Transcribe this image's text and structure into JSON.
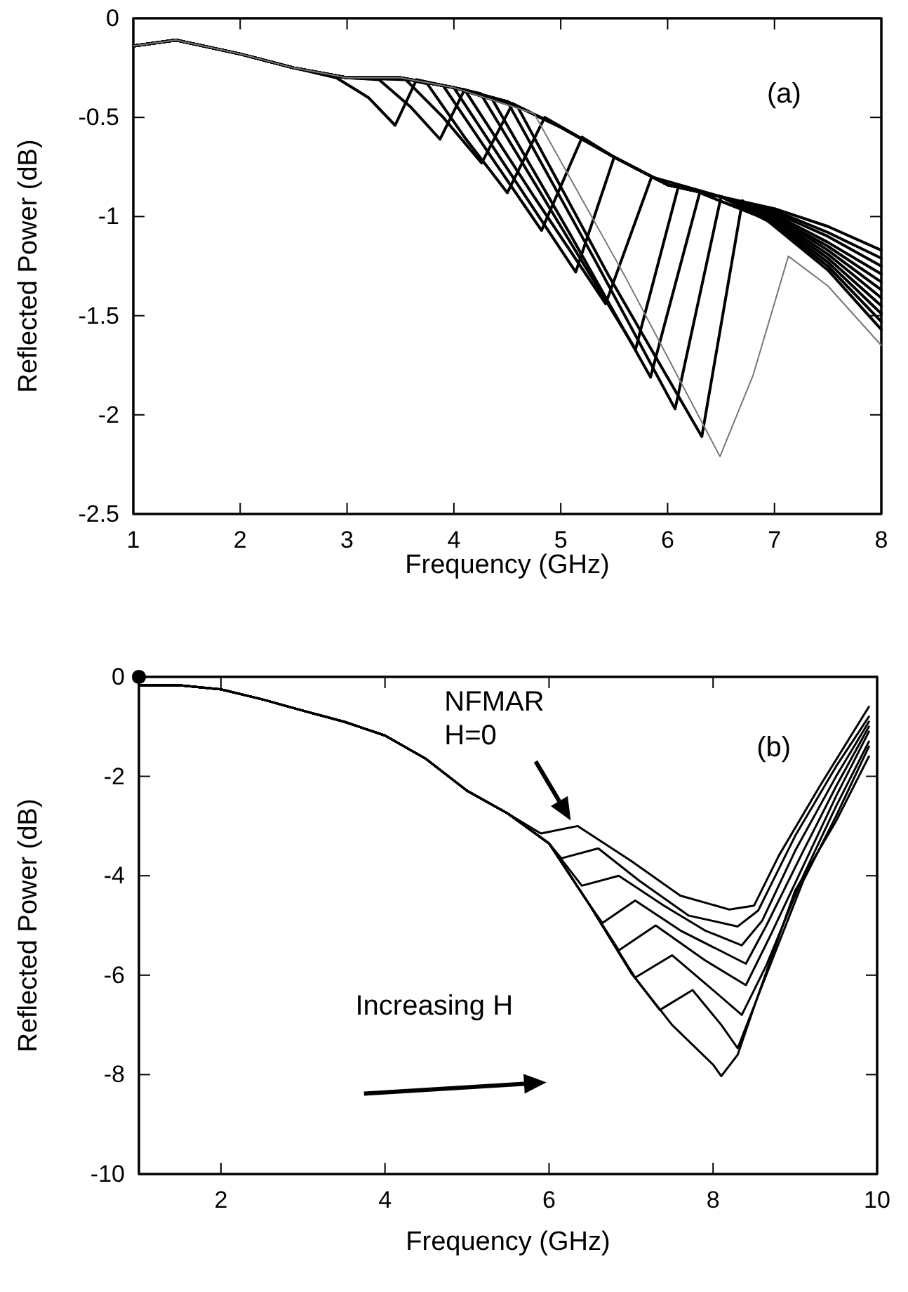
{
  "chart_data": [
    {
      "type": "line",
      "xlabel": "Frequency (GHz)",
      "ylabel": "Reflected Power (dB)",
      "xlim": [
        1,
        8
      ],
      "ylim": [
        -2.5,
        0
      ],
      "xticks": [
        1,
        2,
        3,
        4,
        5,
        6,
        7,
        8
      ],
      "yticks": [
        -2.5,
        -2,
        -1.5,
        -1,
        -0.5,
        0
      ],
      "annotations": [
        "(a)"
      ],
      "series": [
        {
          "color": "#000000",
          "x": [
            1,
            1.4,
            2,
            2.5,
            2.9,
            3.2,
            3.45,
            3.65,
            4,
            4.5,
            5,
            5.5,
            6,
            6.5,
            7,
            7.5,
            8
          ],
          "values": [
            -0.14,
            -0.11,
            -0.18,
            -0.25,
            -0.3,
            -0.4,
            -0.54,
            -0.31,
            -0.35,
            -0.42,
            -0.55,
            -0.7,
            -0.84,
            -0.9,
            -0.96,
            -1.05,
            -1.17
          ]
        },
        {
          "color": "#000000",
          "x": [
            1,
            1.4,
            2,
            2.5,
            3,
            3.3,
            3.6,
            3.87,
            4.1,
            4.5,
            5,
            5.5,
            6,
            6.5,
            7,
            7.5,
            8
          ],
          "values": [
            -0.14,
            -0.11,
            -0.18,
            -0.25,
            -0.3,
            -0.31,
            -0.45,
            -0.61,
            -0.36,
            -0.42,
            -0.55,
            -0.7,
            -0.84,
            -0.9,
            -0.97,
            -1.08,
            -1.21
          ]
        },
        {
          "color": "#000000",
          "x": [
            1,
            1.4,
            2,
            2.5,
            3,
            3.55,
            3.9,
            4.26,
            4.55,
            5,
            5.5,
            6,
            6.5,
            7,
            7.5,
            8
          ],
          "values": [
            -0.14,
            -0.11,
            -0.18,
            -0.25,
            -0.3,
            -0.31,
            -0.5,
            -0.73,
            -0.43,
            -0.55,
            -0.7,
            -0.84,
            -0.9,
            -0.98,
            -1.1,
            -1.25
          ]
        },
        {
          "color": "#000000",
          "x": [
            1,
            1.4,
            2,
            2.5,
            3,
            3.5,
            3.75,
            4.1,
            4.5,
            4.85,
            5.5,
            6,
            6.5,
            7,
            7.5,
            8
          ],
          "values": [
            -0.14,
            -0.11,
            -0.18,
            -0.25,
            -0.3,
            -0.3,
            -0.33,
            -0.6,
            -0.88,
            -0.5,
            -0.7,
            -0.84,
            -0.9,
            -0.99,
            -1.13,
            -1.29
          ]
        },
        {
          "color": "#000000",
          "x": [
            1,
            1.4,
            2,
            2.5,
            3,
            3.5,
            3.9,
            4.35,
            4.82,
            5.2,
            5.5,
            6,
            6.5,
            7,
            7.5,
            8
          ],
          "values": [
            -0.14,
            -0.11,
            -0.18,
            -0.25,
            -0.3,
            -0.3,
            -0.34,
            -0.7,
            -1.07,
            -0.6,
            -0.7,
            -0.84,
            -0.9,
            -1.0,
            -1.15,
            -1.33
          ]
        },
        {
          "color": "#000000",
          "x": [
            1,
            1.4,
            2,
            2.5,
            3,
            3.5,
            4,
            4.55,
            5.14,
            5.5,
            6,
            6.5,
            7,
            7.5,
            8
          ],
          "values": [
            -0.14,
            -0.11,
            -0.18,
            -0.25,
            -0.3,
            -0.3,
            -0.35,
            -0.8,
            -1.28,
            -0.7,
            -0.84,
            -0.9,
            -1.0,
            -1.17,
            -1.37
          ]
        },
        {
          "color": "#000000",
          "x": [
            1,
            1.4,
            2,
            2.5,
            3,
            3.5,
            4,
            4.1,
            4.75,
            5.42,
            5.85,
            6.5,
            7,
            7.5,
            8
          ],
          "values": [
            -0.14,
            -0.11,
            -0.18,
            -0.25,
            -0.3,
            -0.3,
            -0.35,
            -0.36,
            -0.9,
            -1.44,
            -0.8,
            -0.9,
            -1.01,
            -1.19,
            -1.41
          ]
        },
        {
          "color": "#000000",
          "x": [
            1,
            1.4,
            2,
            2.5,
            3,
            3.5,
            4,
            4.25,
            5,
            5.7,
            6.1,
            6.5,
            7,
            7.5,
            8
          ],
          "values": [
            -0.14,
            -0.11,
            -0.18,
            -0.25,
            -0.3,
            -0.3,
            -0.35,
            -0.38,
            -1.05,
            -1.67,
            -0.85,
            -0.9,
            -1.02,
            -1.21,
            -1.45
          ]
        },
        {
          "color": "#000000",
          "x": [
            1,
            1.4,
            2,
            2.5,
            3,
            3.5,
            4,
            4.35,
            5.1,
            5.84,
            6.3,
            7,
            7.5,
            8
          ],
          "values": [
            -0.14,
            -0.11,
            -0.18,
            -0.25,
            -0.3,
            -0.3,
            -0.35,
            -0.4,
            -1.1,
            -1.81,
            -0.88,
            -1.03,
            -1.23,
            -1.49
          ]
        },
        {
          "color": "#000000",
          "x": [
            1,
            1.4,
            2,
            2.5,
            3,
            3.5,
            4,
            4.5,
            5.3,
            6.07,
            6.5,
            7,
            7.5,
            8
          ],
          "values": [
            -0.14,
            -0.11,
            -0.18,
            -0.25,
            -0.3,
            -0.3,
            -0.35,
            -0.42,
            -1.2,
            -1.97,
            -0.9,
            -1.04,
            -1.25,
            -1.53
          ]
        },
        {
          "color": "#000000",
          "x": [
            1,
            1.4,
            2,
            2.5,
            3,
            3.5,
            4,
            4.6,
            5.45,
            6.32,
            6.7,
            7,
            7.5,
            8
          ],
          "values": [
            -0.14,
            -0.11,
            -0.18,
            -0.25,
            -0.3,
            -0.3,
            -0.35,
            -0.45,
            -1.3,
            -2.11,
            -0.92,
            -1.05,
            -1.27,
            -1.57
          ]
        },
        {
          "color": "#777777",
          "x": [
            1,
            1.4,
            2,
            2.5,
            3,
            3.5,
            4,
            4.75,
            5.6,
            6.49,
            6.8,
            7.13,
            7.5,
            8
          ],
          "values": [
            -0.14,
            -0.11,
            -0.18,
            -0.25,
            -0.3,
            -0.3,
            -0.35,
            -0.48,
            -1.3,
            -2.21,
            -1.8,
            -1.2,
            -1.35,
            -1.65
          ]
        }
      ]
    },
    {
      "type": "line",
      "xlabel": "Frequency (GHz)",
      "ylabel": "Reflected Power (dB)",
      "xlim": [
        1,
        10
      ],
      "ylim": [
        -10,
        0
      ],
      "xticks": [
        2,
        4,
        6,
        8,
        10
      ],
      "yticks": [
        -10,
        -8,
        -6,
        -4,
        -2,
        0
      ],
      "annotations": [
        "(b)",
        {
          "text": "NFMAR\nH=0",
          "x": 6.35,
          "y": -3.0
        },
        "Increasing H"
      ],
      "series": [
        {
          "color": "#000000",
          "x": [
            1,
            1.5,
            2,
            2.5,
            3,
            3.5,
            4,
            4.5,
            5,
            5.5,
            5.9,
            6.35,
            7.0,
            7.6,
            8.2,
            8.5,
            8.8,
            9.3,
            9.9
          ],
          "values": [
            -0.17,
            -0.17,
            -0.25,
            -0.45,
            -0.68,
            -0.9,
            -1.18,
            -1.65,
            -2.29,
            -2.75,
            -3.15,
            -3.0,
            -3.7,
            -4.4,
            -4.68,
            -4.6,
            -3.6,
            -2.2,
            -0.6
          ]
        },
        {
          "color": "#000000",
          "x": [
            1,
            1.5,
            2,
            2.5,
            3,
            3.5,
            4,
            4.5,
            5,
            5.5,
            6,
            6.15,
            6.6,
            7.1,
            7.7,
            8.3,
            8.55,
            9.0,
            9.5,
            9.9
          ],
          "values": [
            -0.17,
            -0.17,
            -0.25,
            -0.45,
            -0.68,
            -0.9,
            -1.18,
            -1.65,
            -2.29,
            -2.75,
            -3.35,
            -3.65,
            -3.45,
            -4.1,
            -4.8,
            -5.02,
            -4.7,
            -3.2,
            -1.8,
            -0.8
          ]
        },
        {
          "color": "#000000",
          "x": [
            1,
            1.5,
            2,
            2.5,
            3,
            3.5,
            4,
            4.5,
            5,
            5.5,
            6,
            6.4,
            6.85,
            7.4,
            7.9,
            8.35,
            8.6,
            9.0,
            9.5,
            9.9
          ],
          "values": [
            -0.17,
            -0.17,
            -0.25,
            -0.45,
            -0.68,
            -0.9,
            -1.18,
            -1.65,
            -2.29,
            -2.75,
            -3.35,
            -4.2,
            -4.0,
            -4.6,
            -5.1,
            -5.4,
            -4.9,
            -3.5,
            -2.0,
            -0.9
          ]
        },
        {
          "color": "#000000",
          "x": [
            1,
            1.5,
            2,
            2.5,
            3,
            3.5,
            4,
            4.5,
            5,
            5.5,
            6,
            6.5,
            6.65,
            7.05,
            7.6,
            8.4,
            8.65,
            9.1,
            9.5,
            9.9
          ],
          "values": [
            -0.17,
            -0.17,
            -0.25,
            -0.45,
            -0.68,
            -0.9,
            -1.18,
            -1.65,
            -2.29,
            -2.75,
            -3.35,
            -4.6,
            -4.95,
            -4.5,
            -5.1,
            -5.77,
            -5.0,
            -3.5,
            -2.2,
            -1.0
          ]
        },
        {
          "color": "#000000",
          "x": [
            1,
            1.5,
            2,
            2.5,
            3,
            3.5,
            4,
            4.5,
            5,
            5.5,
            6,
            6.5,
            6.85,
            7.3,
            7.9,
            8.4,
            8.7,
            9.1,
            9.5,
            9.9
          ],
          "values": [
            -0.17,
            -0.17,
            -0.25,
            -0.45,
            -0.68,
            -0.9,
            -1.18,
            -1.65,
            -2.29,
            -2.75,
            -3.35,
            -4.6,
            -5.5,
            -5.0,
            -5.7,
            -6.2,
            -5.2,
            -3.8,
            -2.4,
            -1.1
          ]
        },
        {
          "color": "#000000",
          "x": [
            1,
            1.5,
            2,
            2.5,
            3,
            3.5,
            4,
            4.5,
            5,
            5.5,
            6,
            6.5,
            7.05,
            7.5,
            8.0,
            8.35,
            8.65,
            9.1,
            9.5,
            9.9
          ],
          "values": [
            -0.17,
            -0.17,
            -0.25,
            -0.45,
            -0.68,
            -0.9,
            -1.18,
            -1.65,
            -2.29,
            -2.75,
            -3.35,
            -4.6,
            -6.05,
            -5.6,
            -6.3,
            -6.8,
            -5.8,
            -4.0,
            -2.6,
            -1.3
          ]
        },
        {
          "color": "#000000",
          "x": [
            1,
            1.5,
            2,
            2.5,
            3,
            3.5,
            4,
            4.5,
            5,
            5.5,
            6,
            6.5,
            7,
            7.35,
            7.75,
            8.1,
            8.3,
            8.6,
            9.1,
            9.5,
            9.9
          ],
          "values": [
            -0.17,
            -0.17,
            -0.25,
            -0.45,
            -0.68,
            -0.9,
            -1.18,
            -1.65,
            -2.29,
            -2.75,
            -3.35,
            -4.6,
            -5.95,
            -6.7,
            -6.3,
            -7.0,
            -7.47,
            -6.2,
            -4.1,
            -2.8,
            -1.4
          ]
        },
        {
          "color": "#000000",
          "x": [
            1,
            1.5,
            2,
            2.5,
            3,
            3.5,
            4,
            4.5,
            5,
            5.5,
            6,
            6.5,
            7,
            7.5,
            8,
            8.1,
            8.3,
            8.55,
            9,
            9.5,
            9.9
          ],
          "values": [
            -0.17,
            -0.17,
            -0.25,
            -0.45,
            -0.68,
            -0.9,
            -1.18,
            -1.65,
            -2.29,
            -2.75,
            -3.35,
            -4.6,
            -5.95,
            -7.0,
            -7.8,
            -8.03,
            -7.6,
            -6.4,
            -4.3,
            -2.9,
            -1.6
          ]
        },
        {
          "type": "scatter",
          "marker": "circle",
          "color": "#000000",
          "x": [
            1
          ],
          "values": [
            0
          ]
        }
      ]
    }
  ]
}
